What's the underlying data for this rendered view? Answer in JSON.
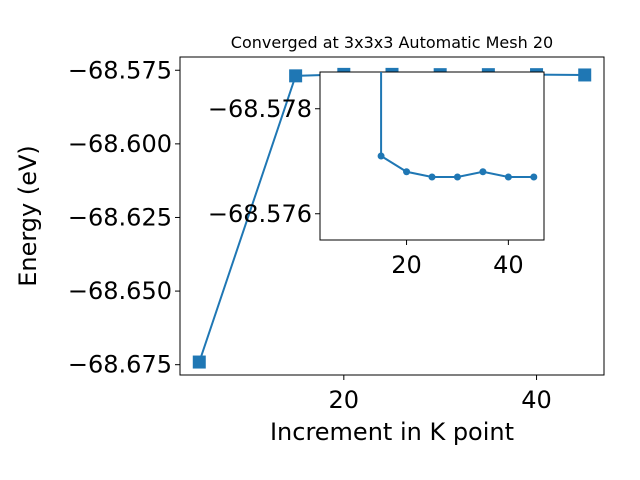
{
  "chart_data": [
    {
      "type": "line",
      "title": "Converged at 3x3x3 Automatic Mesh 20",
      "xlabel": "Increment in K point",
      "ylabel": "Energy (eV)",
      "xlim": [
        3,
        47
      ],
      "ylim": [
        -68.6785,
        -68.5705
      ],
      "xticks": [
        20,
        40
      ],
      "yticks": [
        -68.675,
        -68.65,
        -68.625,
        -68.6,
        -68.575
      ],
      "ytick_labels": [
        "−68.675",
        "−68.650",
        "−68.625",
        "−68.600",
        "−68.575"
      ],
      "xtick_labels": [
        "20",
        "40"
      ],
      "grid": false,
      "color": "#1f77b4",
      "marker": "square",
      "series": [
        {
          "x": [
            5,
            15,
            20,
            25,
            30,
            35,
            40,
            45
          ],
          "y": [
            -68.6741,
            -68.5769,
            -68.5764,
            -68.5764,
            -68.5765,
            -68.5765,
            -68.5765,
            -68.5766
          ]
        }
      ]
    },
    {
      "type": "line",
      "title": "",
      "xlabel": "",
      "ylabel": "",
      "xlim": [
        3,
        47
      ],
      "ylim": [
        -68.5755,
        -68.5787
      ],
      "xticks": [
        20,
        40
      ],
      "yticks": [
        -68.578,
        -68.576
      ],
      "ytick_labels": [
        "−68.578",
        "−68.576"
      ],
      "xtick_labels": [
        "20",
        "40"
      ],
      "grid": false,
      "color": "#1f77b4",
      "marker": "circle",
      "series": [
        {
          "x": [
            15,
            15,
            20,
            25,
            30,
            35,
            40,
            45
          ],
          "y": [
            -68.58,
            -68.5771,
            -68.5768,
            -68.5767,
            -68.5767,
            -68.5768,
            -68.5767,
            -68.5767
          ]
        }
      ]
    }
  ]
}
